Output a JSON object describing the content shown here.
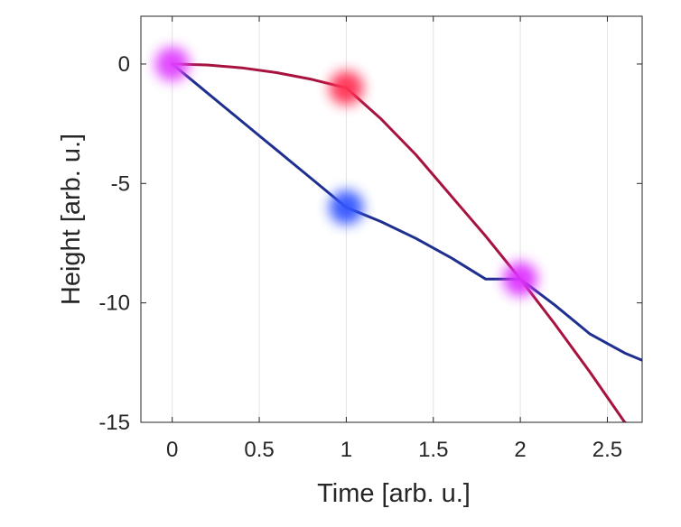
{
  "chart_data": {
    "type": "line",
    "title": "",
    "xlabel": "Time [arb. u.]",
    "ylabel": "Height [arb. u.]",
    "xlim": [
      -0.18,
      2.7
    ],
    "ylim": [
      -15,
      2
    ],
    "grid": "vertical",
    "x_ticks": [
      0,
      0.5,
      1,
      1.5,
      2,
      2.5
    ],
    "x_tick_labels": [
      "0",
      "0.5",
      "1",
      "1.5",
      "2",
      "2.5"
    ],
    "y_ticks": [
      0,
      -5,
      -10,
      -15
    ],
    "y_tick_labels": [
      "0",
      "-5",
      "-10",
      "-15"
    ],
    "series": [
      {
        "name": "path-blue",
        "color": "#1f2f8f",
        "x": [
          0,
          0.1,
          0.2,
          0.3,
          0.4,
          0.5,
          0.6,
          0.7,
          0.8,
          0.9,
          1.0,
          1.2,
          1.4,
          1.6,
          1.8,
          2.0,
          2.2,
          2.4,
          2.6,
          2.7
        ],
        "y": [
          0,
          -0.6,
          -1.2,
          -1.8,
          -2.4,
          -3.0,
          -3.6,
          -4.2,
          -4.8,
          -5.4,
          -6.0,
          -6.6,
          -7.3,
          -8.1,
          -9.0,
          -9.0,
          -10.1,
          -11.3,
          -12.1,
          -12.4
        ]
      },
      {
        "name": "path-red",
        "color": "#a8123f",
        "x": [
          0,
          0.2,
          0.4,
          0.6,
          0.8,
          1.0,
          1.2,
          1.4,
          1.6,
          1.8,
          2.0,
          2.2,
          2.4,
          2.6,
          2.63
        ],
        "y": [
          0,
          -0.04,
          -0.16,
          -0.36,
          -0.64,
          -1.0,
          -2.3,
          -3.8,
          -5.5,
          -7.2,
          -9.0,
          -10.9,
          -12.9,
          -15.0,
          -15.1
        ]
      }
    ],
    "markers": [
      {
        "name": "magenta-origin",
        "x": 0,
        "y": 0,
        "color": "#e040ff"
      },
      {
        "name": "red-event",
        "x": 1,
        "y": -1,
        "color": "#ff3355"
      },
      {
        "name": "blue-event",
        "x": 1,
        "y": -6,
        "color": "#3355ff"
      },
      {
        "name": "magenta-meeting",
        "x": 2,
        "y": -9,
        "color": "#dd33ff"
      }
    ]
  }
}
